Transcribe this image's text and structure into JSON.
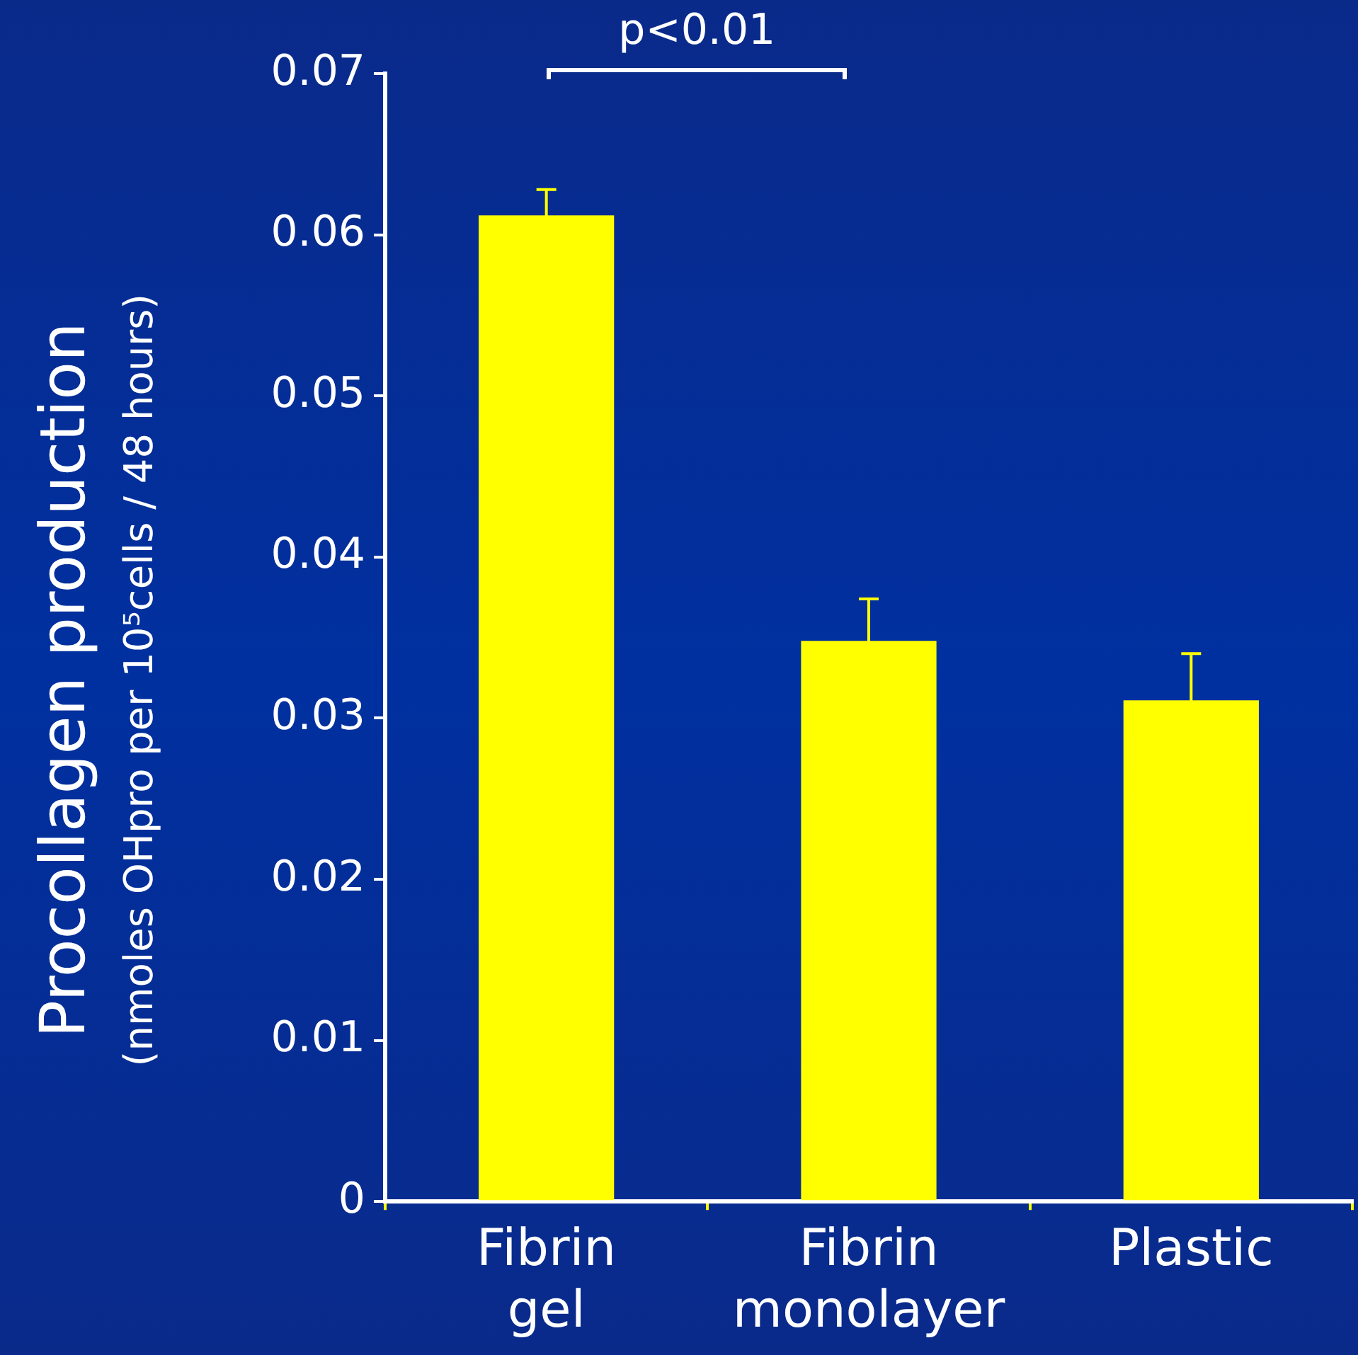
{
  "chart_data": {
    "type": "bar",
    "ylabel": "Procollagen production\n(nmoles OHpro per 10⁵cells / 48 hours)",
    "categories": [
      "Fibrin gel",
      "Fibrin monolayer",
      "Plastic"
    ],
    "values": [
      0.0612,
      0.0348,
      0.0311
    ],
    "errors": [
      0.0016,
      0.0026,
      0.0029
    ],
    "color": "#ffff00",
    "ylim": [
      0,
      0.07
    ],
    "yticks": [
      0,
      0.01,
      0.02,
      0.03,
      0.04,
      0.05,
      0.06,
      0.07
    ],
    "grid": false,
    "legend": false,
    "annotations": [
      "p<0.01"
    ]
  }
}
